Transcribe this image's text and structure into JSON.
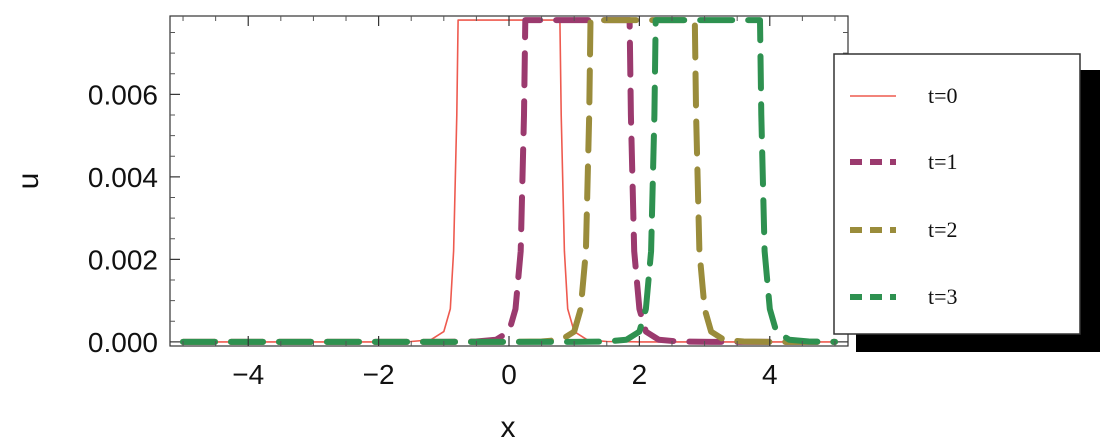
{
  "chart_data": {
    "type": "line",
    "xlabel": "x",
    "ylabel": "u",
    "xlim": [
      -5.2,
      5.2
    ],
    "ylim": [
      -0.0001,
      0.0079
    ],
    "x_ticks": [
      -4,
      -2,
      0,
      2,
      4
    ],
    "x_tick_labels": [
      "−4",
      "−2",
      "0",
      "2",
      "4"
    ],
    "y_ticks": [
      0.0,
      0.002,
      0.004,
      0.006
    ],
    "y_tick_labels": [
      "0.000",
      "0.002",
      "0.004",
      "0.006"
    ],
    "grid": false,
    "legend_position": "right",
    "series": [
      {
        "name": "t=0",
        "center": 0.0,
        "color": "#ee5a4f",
        "style": "solid",
        "x": [
          -5.0,
          -2.0,
          -1.5,
          -1.2,
          -1.0,
          -0.9,
          -0.85,
          -0.8,
          -0.78,
          0.78,
          0.8,
          0.85,
          0.9,
          1.0,
          1.2,
          1.5,
          2.0,
          5.0
        ],
        "y": [
          0.0,
          0.0,
          1e-05,
          5e-05,
          0.00025,
          0.0008,
          0.0022,
          0.0055,
          0.0078,
          0.0078,
          0.0055,
          0.0022,
          0.0008,
          0.00025,
          5e-05,
          1e-05,
          0.0,
          0.0
        ]
      },
      {
        "name": "t=1",
        "center": 1.05,
        "color": "#9b3a6e",
        "style": "dashed",
        "x": [
          -5.0,
          -1.0,
          -0.5,
          -0.2,
          0.0,
          0.1,
          0.18,
          0.23,
          0.25,
          1.85,
          1.87,
          1.92,
          2.0,
          2.1,
          2.3,
          2.6,
          3.1,
          5.0
        ],
        "y": [
          0.0,
          0.0,
          1e-05,
          5e-05,
          0.00025,
          0.0008,
          0.0022,
          0.0055,
          0.0078,
          0.0078,
          0.0055,
          0.0022,
          0.0008,
          0.00025,
          5e-05,
          1e-05,
          0.0,
          0.0
        ]
      },
      {
        "name": "t=2",
        "center": 2.05,
        "color": "#9a8c3b",
        "style": "dashed",
        "x": [
          -5.0,
          0.0,
          0.5,
          0.8,
          1.0,
          1.1,
          1.18,
          1.23,
          1.25,
          2.85,
          2.87,
          2.92,
          3.0,
          3.1,
          3.3,
          3.6,
          4.1,
          5.0
        ],
        "y": [
          0.0,
          0.0,
          1e-05,
          5e-05,
          0.00025,
          0.0008,
          0.0022,
          0.0055,
          0.0078,
          0.0078,
          0.0055,
          0.0022,
          0.0008,
          0.00025,
          5e-05,
          1e-05,
          0.0,
          0.0
        ]
      },
      {
        "name": "t=3",
        "center": 3.05,
        "color": "#2e9150",
        "style": "dashed",
        "x": [
          -5.0,
          1.0,
          1.5,
          1.8,
          2.0,
          2.1,
          2.18,
          2.23,
          2.25,
          3.85,
          3.87,
          3.92,
          4.0,
          4.1,
          4.3,
          4.6,
          5.0
        ],
        "y": [
          0.0,
          0.0,
          1e-05,
          5e-05,
          0.00025,
          0.0008,
          0.0022,
          0.0055,
          0.0078,
          0.0078,
          0.0055,
          0.0022,
          0.0008,
          0.00025,
          5e-05,
          1e-05,
          0.0
        ]
      }
    ]
  }
}
